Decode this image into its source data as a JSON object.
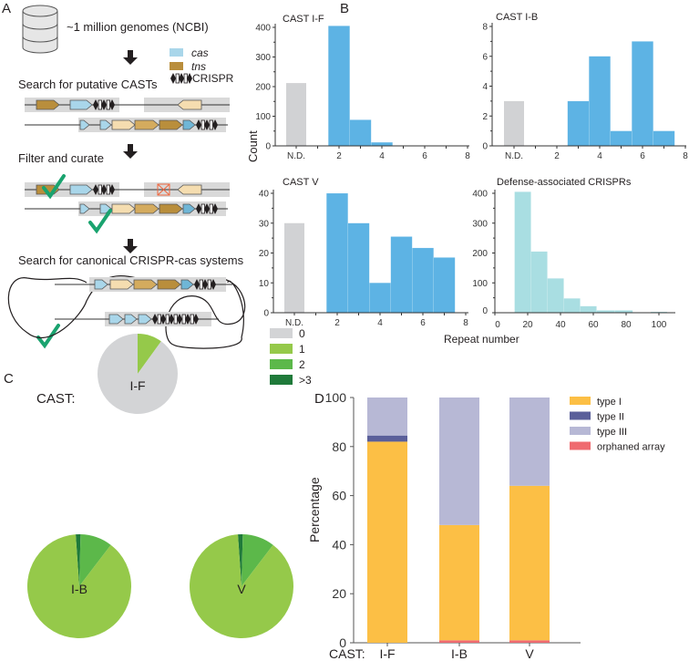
{
  "panels": {
    "a": "A",
    "b": "B",
    "c": "C",
    "d": "D"
  },
  "diagram": {
    "genomes_label": "~1 million genomes (NCBI)",
    "legend": {
      "cas": "cas",
      "tns": "tns",
      "crispr": "CRISPR"
    },
    "step1": "Search for putative CASTs",
    "step2": "Filter and curate",
    "step3": "Search for canonical CRISPR-cas systems"
  },
  "colors": {
    "nd": "#d1d2d4",
    "hist": "#5db3e4",
    "defense": "#a9dee2",
    "cas": "#a9d6ea",
    "tns": "#b98e3c",
    "tns_light": "#f5ddb0",
    "tns_mid": "#d4ab5e",
    "check": "#1aa36f",
    "cross": "#f0673f"
  },
  "chart_data": [
    {
      "type": "bar",
      "id": "cast-if",
      "title": "CAST I-F",
      "ylim": [
        0,
        400
      ],
      "yticks": [
        "0",
        "100",
        "200",
        "300",
        "400"
      ],
      "xticks": [
        "N.D.",
        "2",
        "4",
        "6",
        "8"
      ],
      "xlim": [
        0,
        8
      ],
      "nd": 212,
      "bins": [
        {
          "x": 2,
          "count": 405
        },
        {
          "x": 3,
          "count": 88
        },
        {
          "x": 4,
          "count": 12
        }
      ]
    },
    {
      "type": "bar",
      "id": "cast-ib",
      "title": "CAST I-B",
      "ylim": [
        0,
        8
      ],
      "yticks": [
        "0",
        "2",
        "4",
        "6",
        "8"
      ],
      "xticks": [
        "N.D.",
        "2",
        "4",
        "6",
        "8"
      ],
      "xlim": [
        0,
        8
      ],
      "nd": 3,
      "bins": [
        {
          "x": 3,
          "count": 3
        },
        {
          "x": 4,
          "count": 6
        },
        {
          "x": 5,
          "count": 1
        },
        {
          "x": 6,
          "count": 7
        },
        {
          "x": 7,
          "count": 1
        }
      ]
    },
    {
      "type": "bar",
      "id": "cast-v",
      "title": "CAST V",
      "ylim": [
        0,
        40
      ],
      "yticks": [
        "0",
        "10",
        "20",
        "30",
        "40"
      ],
      "xticks": [
        "N.D.",
        "2",
        "4",
        "6",
        "8"
      ],
      "xlim": [
        0,
        8
      ],
      "nd": 30,
      "bins": [
        {
          "x": 2,
          "count": 40
        },
        {
          "x": 3,
          "count": 30
        },
        {
          "x": 4,
          "count": 10
        },
        {
          "x": 5,
          "count": 25.5
        },
        {
          "x": 6,
          "count": 21.7
        },
        {
          "x": 7,
          "count": 18.5
        }
      ]
    },
    {
      "type": "bar",
      "id": "defense",
      "title": "Defense-associated CRISPRs",
      "ylim": [
        0,
        400
      ],
      "yticks": [
        "0",
        "100",
        "200",
        "300",
        "400"
      ],
      "xticks": [
        "0",
        "20",
        "40",
        "60",
        "80",
        "100"
      ],
      "xlim": [
        0,
        105
      ],
      "bins": [
        {
          "start": 12,
          "end": 22,
          "count": 405
        },
        {
          "start": 22,
          "end": 32,
          "count": 205
        },
        {
          "start": 32,
          "end": 42,
          "count": 115
        },
        {
          "start": 42,
          "end": 52,
          "count": 48
        },
        {
          "start": 52,
          "end": 62,
          "count": 22
        },
        {
          "start": 62,
          "end": 73,
          "count": 8
        },
        {
          "start": 73,
          "end": 84,
          "count": 8
        },
        {
          "start": 95,
          "end": 105,
          "count": 3
        }
      ]
    },
    {
      "type": "pie",
      "id": "pies",
      "prefix": "CAST:",
      "legend": [
        {
          "label": "0",
          "color": "#d3d4d6"
        },
        {
          "label": "1",
          "color": "#95c94a"
        },
        {
          "label": "2",
          "color": "#5cb84a"
        },
        {
          "label": ">3",
          "color": "#1f7a3a"
        }
      ],
      "pies": [
        {
          "name": "I-F",
          "values": {
            "0": 90,
            "1": 10,
            "2": 0,
            ">3": 0
          }
        },
        {
          "name": "I-B",
          "values": {
            "0": 0,
            "1": 88.5,
            "2": 10,
            ">3": 1.5
          }
        },
        {
          "name": "V",
          "values": {
            "0": 0,
            "1": 88.5,
            "2": 10,
            ">3": 1.5
          }
        }
      ]
    },
    {
      "type": "bar",
      "id": "stacked",
      "stacked": true,
      "ylabel": "Percentage",
      "xprefix": "CAST:",
      "ylim": [
        0,
        100
      ],
      "yticks": [
        "0",
        "20",
        "40",
        "60",
        "80",
        "100"
      ],
      "categories": [
        "I-F",
        "I-B",
        "V"
      ],
      "series": [
        {
          "name": "orphaned array",
          "color": "#ef6b70",
          "values": [
            0,
            1,
            1
          ]
        },
        {
          "name": "type I",
          "color": "#fcbf45",
          "values": [
            82,
            47,
            63
          ]
        },
        {
          "name": "type II",
          "color": "#5a5f9a",
          "values": [
            2.5,
            0,
            0
          ]
        },
        {
          "name": "type III",
          "color": "#b7b8d5",
          "values": [
            15.5,
            52,
            36
          ]
        }
      ],
      "legend_order": [
        "type I",
        "type II",
        "type III",
        "orphaned array"
      ]
    }
  ],
  "axes": {
    "count_label": "Count",
    "repeat_label": "Repeat number"
  }
}
